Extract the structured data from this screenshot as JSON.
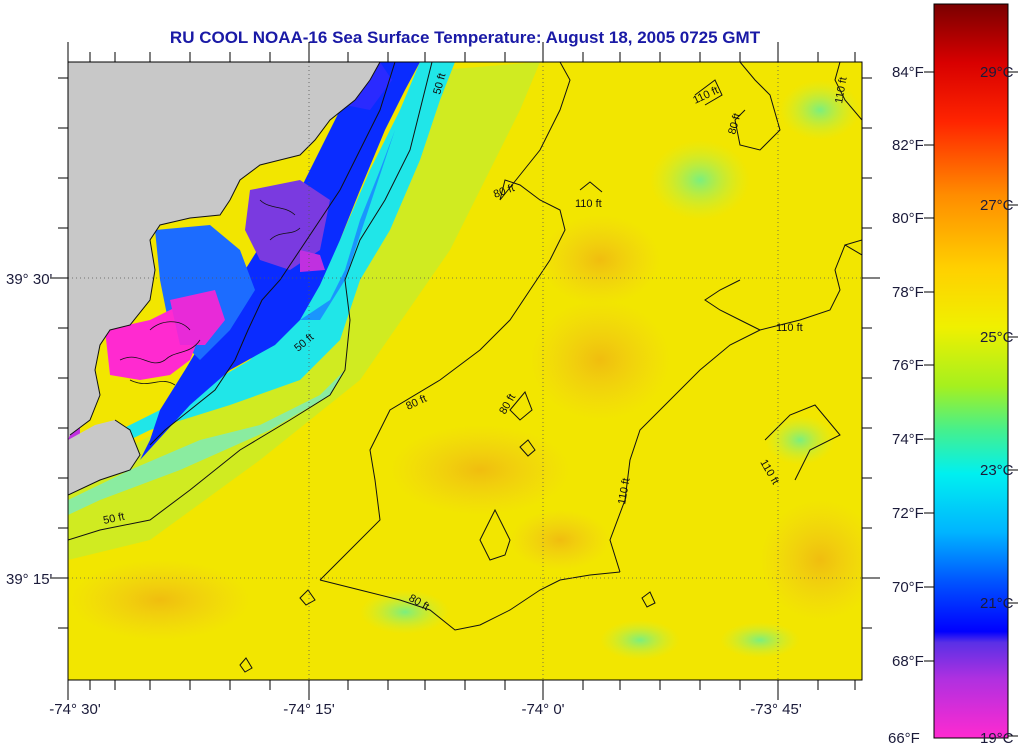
{
  "title": "RU COOL  NOAA-16  Sea Surface Temperature:  August 18, 2005 0725 GMT",
  "map": {
    "longitude_labels": [
      "-74° 30'",
      "-74° 15'",
      "-74° 0'",
      "-73° 45'"
    ],
    "latitude_labels": [
      "39° 30'",
      "39° 15'"
    ]
  },
  "contours": {
    "labels": [
      "50 ft",
      "50 ft",
      "50 ft",
      "80 ft",
      "80 ft",
      "80 ft",
      "80 ft",
      "80 ft",
      "110 ft",
      "110 ft",
      "110 ft",
      "110 ft",
      "110 ft",
      "110 ft"
    ]
  },
  "colorbar": {
    "fahrenheit_labels": [
      "84°F",
      "82°F",
      "80°F",
      "78°F",
      "76°F",
      "74°F",
      "72°F",
      "70°F",
      "68°F",
      "66°F"
    ],
    "celsius_labels": [
      "29°C",
      "27°C",
      "25°C",
      "23°C",
      "21°C",
      "19°C"
    ]
  },
  "colors": {
    "title": "#1a1aa6",
    "land": "#c8c8c8",
    "water_warm": "#f2e600",
    "water_warmest": "#f0c000",
    "nearshore_cyan": "#00e6f0",
    "nearshore_blue": "#0a2cff",
    "coldest_magenta": "#ff2ad0"
  }
}
